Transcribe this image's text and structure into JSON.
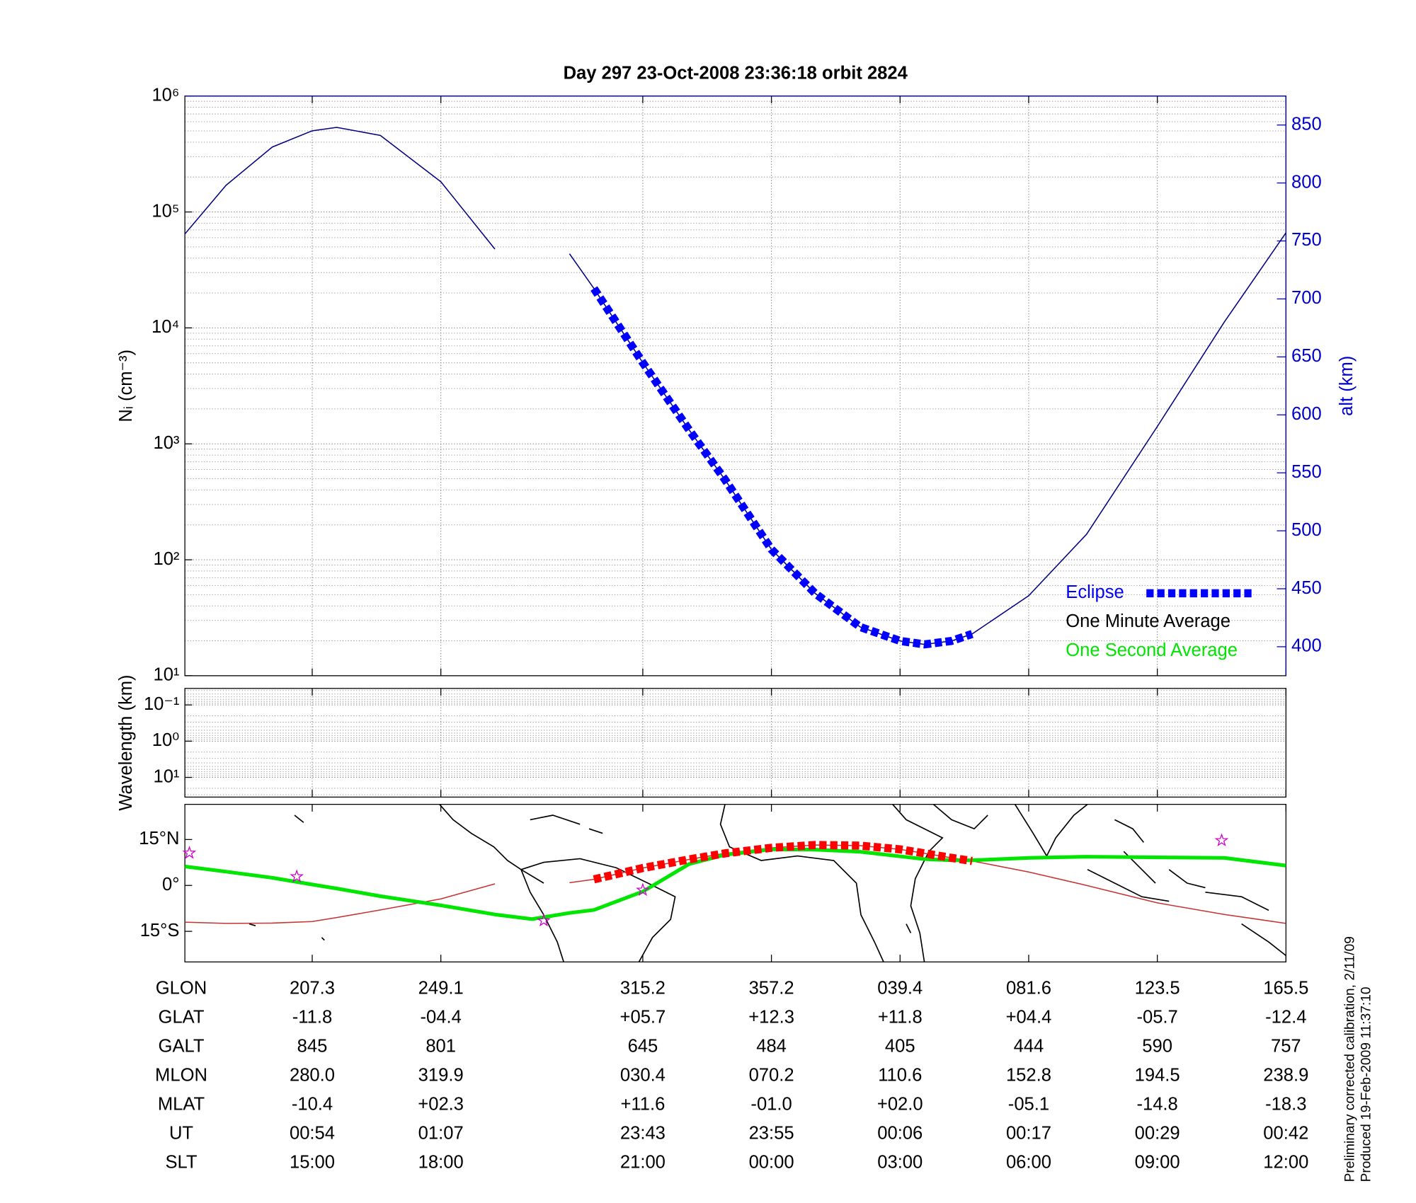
{
  "chart_data": [
    {
      "type": "line",
      "title": "Day 297  23-Oct-2008 23:36:18   orbit 2824",
      "ylabel": "Nᵢ (cm⁻³)",
      "y2label": "alt (km)",
      "log_y": true,
      "grid": true,
      "minor_grid": true,
      "ylim": [
        10,
        1000000
      ],
      "yticks": [
        {
          "value": 10,
          "label": "10¹"
        },
        {
          "value": 100,
          "label": "10²"
        },
        {
          "value": 1000,
          "label": "10³"
        },
        {
          "value": 10000,
          "label": "10⁴"
        },
        {
          "value": 100000,
          "label": "10⁵"
        },
        {
          "value": 1000000,
          "label": "10⁶"
        }
      ],
      "y2lim": [
        375,
        875
      ],
      "y2ticks": [
        400,
        450,
        500,
        550,
        600,
        650,
        700,
        750,
        800,
        850
      ],
      "y2color": "#0000cc",
      "xlim": [
        0,
        8.56
      ],
      "xticks": [
        0.99,
        1.99,
        3.56,
        4.56,
        5.56,
        6.56,
        7.56,
        8.56
      ],
      "legend": "lower right",
      "x": [
        0,
        0.32,
        0.68,
        0.99,
        1.18,
        1.52,
        1.99,
        2.41,
        2.7,
        2.99,
        3.18,
        3.56,
        3.92,
        4.2,
        4.56,
        4.9,
        5.25,
        5.56,
        5.75,
        5.96,
        6.12,
        6.56,
        7.01,
        7.56,
        8.08,
        8.56
      ],
      "series": [
        {
          "color": "#000080",
          "axis": "y2",
          "style": "thin",
          "values": [
            756,
            798,
            831,
            845,
            848,
            841,
            801,
            743,
            null,
            739,
            709,
            645,
            587,
            544,
            484,
            446,
            417,
            405,
            402,
            405,
            411,
            444,
            497,
            590,
            680,
            757
          ]
        },
        {
          "name": "Eclipse",
          "color": "#0000ff",
          "axis": "y2",
          "style": "dashed",
          "values": [
            null,
            null,
            null,
            null,
            null,
            null,
            null,
            null,
            null,
            null,
            709,
            645,
            587,
            544,
            484,
            446,
            417,
            405,
            402,
            405,
            411,
            null,
            null,
            null,
            null,
            null
          ]
        },
        {
          "name": "One Minute Average",
          "color": "#000000",
          "style": "thin",
          "values": [
            null,
            null,
            null,
            null,
            null,
            null,
            null,
            null,
            null,
            null,
            null,
            null,
            null,
            null,
            null,
            null,
            null,
            null,
            null,
            null,
            null,
            null,
            null,
            null,
            null,
            null
          ]
        },
        {
          "name": "One Second Average",
          "color": "#00e600",
          "style": "thin",
          "values": [
            null,
            null,
            null,
            null,
            null,
            null,
            null,
            null,
            null,
            null,
            null,
            null,
            null,
            null,
            null,
            null,
            null,
            null,
            null,
            null,
            null,
            null,
            null,
            null,
            null,
            null
          ]
        }
      ]
    },
    {
      "type": "line",
      "ylabel": "Wavelength (km)",
      "log_y": true,
      "y_reversed": true,
      "grid": true,
      "minor_grid": true,
      "ylim": [
        0.035,
        35
      ],
      "yticks": [
        {
          "value": 0.1,
          "label": "10⁻¹"
        },
        {
          "value": 1,
          "label": "10⁰"
        },
        {
          "value": 10,
          "label": "10¹"
        }
      ],
      "xlim": [
        0,
        8.56
      ],
      "xticks": [
        0.99,
        1.99,
        3.56,
        4.56,
        5.56,
        6.56,
        7.56,
        8.56
      ]
    },
    {
      "type": "map",
      "ylim": [
        -25,
        26.5
      ],
      "yticks": [
        {
          "value": 15,
          "label": "15°N"
        },
        {
          "value": 0,
          "label": "0°"
        },
        {
          "value": -15,
          "label": "15°S"
        }
      ],
      "xlim": [
        0,
        8.56
      ],
      "xticks": [
        0.99,
        1.99,
        3.56,
        4.56,
        5.56,
        6.56,
        7.56,
        8.56
      ],
      "x": [
        0,
        0.32,
        0.68,
        0.99,
        1.18,
        1.52,
        1.99,
        2.41,
        2.7,
        2.99,
        3.18,
        3.56,
        3.92,
        4.2,
        4.56,
        4.9,
        5.25,
        5.56,
        5.75,
        5.96,
        6.12,
        6.56,
        7.01,
        7.56,
        8.08,
        8.56
      ],
      "series": [
        {
          "color": "#c83232",
          "style": "thin",
          "values": [
            -12.0,
            -12.4,
            -12.3,
            -11.8,
            -10.5,
            -8.0,
            -4.4,
            0.5,
            null,
            0.9,
            2.0,
            5.7,
            8.5,
            10.5,
            12.3,
            13.2,
            13.0,
            11.8,
            10.5,
            9.0,
            8.0,
            4.4,
            0.0,
            -5.7,
            -9.5,
            -12.4
          ]
        },
        {
          "color": "#00e600",
          "style": "thick",
          "values": [
            6.2,
            4.5,
            2.5,
            0.3,
            -1.0,
            -3.5,
            -6.5,
            -9.5,
            -11.0,
            -9.0,
            -8.0,
            -2.0,
            7.0,
            10.0,
            11.8,
            11.7,
            11.0,
            9.5,
            8.6,
            8.2,
            8.2,
            9.0,
            9.4,
            9.2,
            9.0,
            6.5
          ]
        },
        {
          "color": "#ff0000",
          "style": "dashed",
          "values": [
            null,
            null,
            null,
            null,
            null,
            null,
            null,
            null,
            null,
            null,
            2.0,
            5.7,
            8.5,
            10.5,
            12.3,
            13.2,
            13.0,
            11.8,
            10.5,
            9.0,
            8.0,
            null,
            null,
            null,
            null,
            null
          ]
        },
        {
          "color": "#cc00cc",
          "marker": "star",
          "x": [
            0.035,
            0.87,
            2.79,
            3.56,
            8.06
          ],
          "values": [
            10.6,
            2.9,
            -11.5,
            -1.5,
            14.7
          ]
        }
      ],
      "x_table": {
        "rows": [
          {
            "label": "GLON",
            "values": [
              "207.3",
              "249.1",
              "315.2",
              "357.2",
              "039.4",
              "081.6",
              "123.5",
              "165.5"
            ]
          },
          {
            "label": "GLAT",
            "values": [
              "-11.8",
              "-04.4",
              "+05.7",
              "+12.3",
              "+11.8",
              "+04.4",
              "-05.7",
              "-12.4"
            ]
          },
          {
            "label": "GALT",
            "values": [
              "845",
              "801",
              "645",
              "484",
              "405",
              "444",
              "590",
              "757"
            ]
          },
          {
            "label": "MLON",
            "values": [
              "280.0",
              "319.9",
              "030.4",
              "070.2",
              "110.6",
              "152.8",
              "194.5",
              "238.9"
            ]
          },
          {
            "label": "MLAT",
            "values": [
              "-10.4",
              "+02.3",
              "+11.6",
              "-01.0",
              "+02.0",
              "-05.1",
              "-14.8",
              "-18.3"
            ]
          },
          {
            "label": "UT",
            "values": [
              "00:54",
              "01:07",
              "23:43",
              "23:55",
              "00:06",
              "00:17",
              "00:29",
              "00:42"
            ]
          },
          {
            "label": "SLT",
            "values": [
              "15:00",
              "18:00",
              "21:00",
              "00:00",
              "03:00",
              "06:00",
              "09:00",
              "12:00"
            ]
          }
        ]
      }
    }
  ],
  "footer": [
    "Preliminary corrected calibration, 2/11/09",
    "Produced 19-Feb-2009 11:37:10"
  ]
}
